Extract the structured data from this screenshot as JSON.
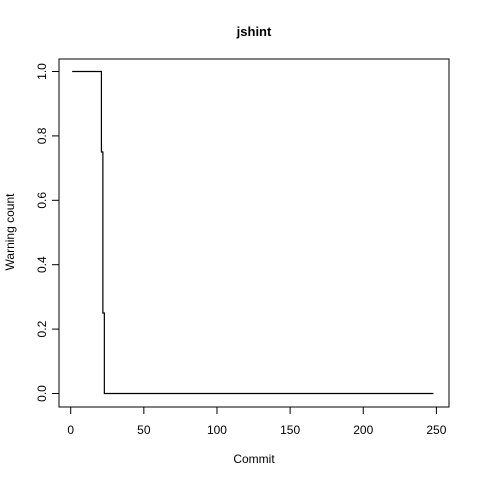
{
  "chart_data": {
    "type": "line",
    "title": "jshint",
    "xlabel": "Commit",
    "ylabel": "Warning count",
    "xlim": [
      0,
      250
    ],
    "ylim": [
      0,
      1
    ],
    "x_ticks": [
      0,
      50,
      100,
      150,
      200,
      250
    ],
    "x_tick_labels": [
      "0",
      "50",
      "100",
      "150",
      "200",
      "250"
    ],
    "y_ticks": [
      0,
      0.2,
      0.4,
      0.6,
      0.8,
      1.0
    ],
    "y_tick_labels": [
      "0.0",
      "0.2",
      "0.4",
      "0.6",
      "0.8",
      "1.0"
    ],
    "grid": false,
    "series": [
      {
        "step": true,
        "color": "#000000",
        "x": [
          1,
          21,
          22,
          23,
          248
        ],
        "y": [
          1.0,
          0.75,
          0.25,
          0.0,
          0.0
        ]
      }
    ]
  }
}
